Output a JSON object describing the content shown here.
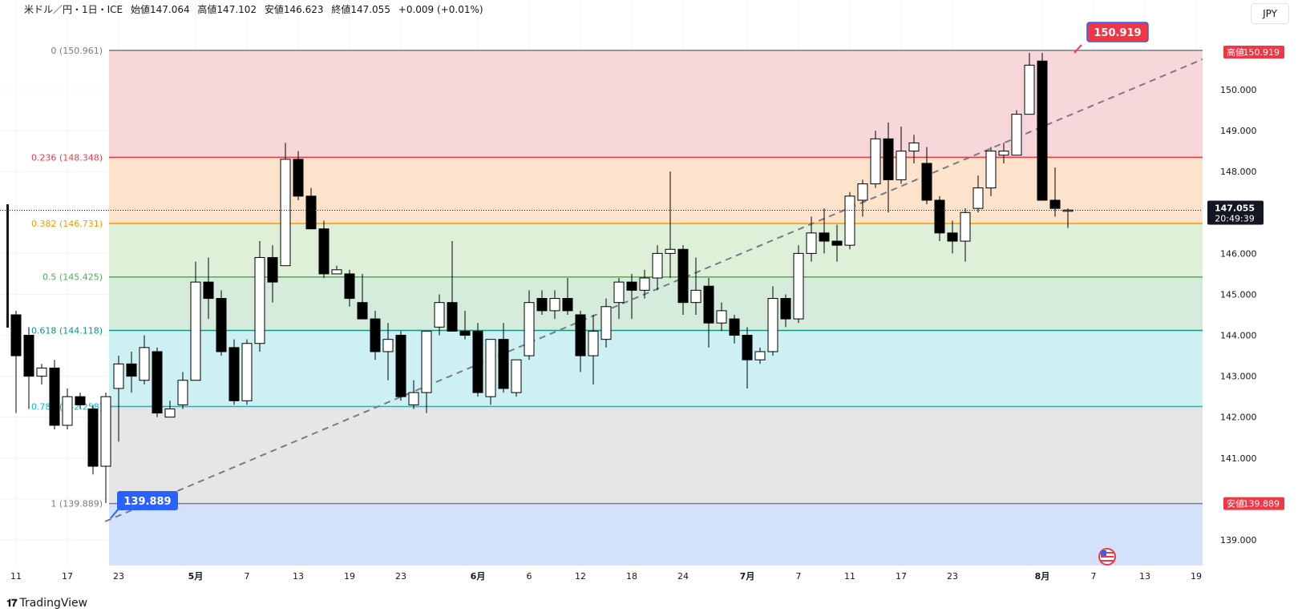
{
  "header": {
    "symbol": "米ドル／円・1日・ICE",
    "open": "始値147.064",
    "high": "高値147.102",
    "low": "安値146.623",
    "close": "終値147.055",
    "change": "+0.009 (+0.01%)"
  },
  "currency_button": "JPY",
  "branding": "TradingView",
  "colors": {
    "up_body": "#ffffff",
    "down_body": "#000000",
    "price_tag": "#f23645",
    "low_tag": "#2962ff"
  },
  "chart_data": {
    "type": "candlestick",
    "y_range": [
      138.8,
      151.2
    ],
    "price_scale_labels": [
      "150.000",
      "149.000",
      "148.000",
      "147.000",
      "146.000",
      "145.000",
      "144.000",
      "143.000",
      "142.000",
      "141.000",
      "139.000"
    ],
    "time_labels": [
      "11",
      "17",
      "23",
      "5月",
      "7",
      "13",
      "19",
      "23",
      "6月",
      "6",
      "12",
      "18",
      "24",
      "7月",
      "7",
      "11",
      "17",
      "23",
      "8月",
      "7",
      "13",
      "19"
    ],
    "current_price": "147.055",
    "countdown": "20:49:39",
    "high_label": "高値",
    "high_value": "150.919",
    "low_label": "安値",
    "low_value": "139.889",
    "swing_high_tag": "150.919",
    "swing_low_tag": "139.889",
    "fib_levels": [
      {
        "label": "0 (150.961)",
        "price": 150.961,
        "line": "#787b86",
        "fill": "#f8d7da"
      },
      {
        "label": "0.236 (148.348)",
        "price": 148.348,
        "line": "#f23645",
        "fill": "#fde3cc"
      },
      {
        "label": "0.382 (146.731)",
        "price": 146.731,
        "line": "#ff9800",
        "fill": "#dff0d8"
      },
      {
        "label": "0.5 (145.425)",
        "price": 145.425,
        "line": "#4caf50",
        "fill": "#d5ecdc"
      },
      {
        "label": "0.618 (144.118)",
        "price": 144.118,
        "line": "#089981",
        "fill": "#cdf0f2"
      },
      {
        "label": "0.786 (142.258)",
        "price": 142.258,
        "line": "#00bcd4",
        "fill": "#e6e6e6"
      },
      {
        "label": "1 (139.889)",
        "price": 139.889,
        "line": "#787b86",
        "fill": "#d4e1fb"
      }
    ],
    "candles": [
      {
        "x": 20,
        "o": 144.5,
        "h": 144.6,
        "l": 142.1,
        "c": 143.5
      },
      {
        "x": 36,
        "o": 144.0,
        "h": 144.2,
        "l": 142.2,
        "c": 143.0
      },
      {
        "x": 52,
        "o": 143.0,
        "h": 143.3,
        "l": 142.8,
        "c": 143.2
      },
      {
        "x": 68,
        "o": 143.2,
        "h": 143.4,
        "l": 141.7,
        "c": 141.8
      },
      {
        "x": 84,
        "o": 141.8,
        "h": 142.7,
        "l": 141.7,
        "c": 142.5
      },
      {
        "x": 100,
        "o": 142.5,
        "h": 142.6,
        "l": 142.2,
        "c": 142.3
      },
      {
        "x": 116,
        "o": 142.2,
        "h": 142.3,
        "l": 140.6,
        "c": 140.8
      },
      {
        "x": 132,
        "o": 140.8,
        "h": 142.6,
        "l": 139.9,
        "c": 142.5
      },
      {
        "x": 148,
        "o": 142.7,
        "h": 143.5,
        "l": 141.4,
        "c": 143.3
      },
      {
        "x": 164,
        "o": 143.3,
        "h": 143.6,
        "l": 142.6,
        "c": 143.0
      },
      {
        "x": 180,
        "o": 142.9,
        "h": 144.0,
        "l": 142.8,
        "c": 143.7
      },
      {
        "x": 196,
        "o": 143.6,
        "h": 143.7,
        "l": 142.0,
        "c": 142.1
      },
      {
        "x": 212,
        "o": 142.0,
        "h": 142.4,
        "l": 142.0,
        "c": 142.2
      },
      {
        "x": 228,
        "o": 142.3,
        "h": 143.1,
        "l": 142.2,
        "c": 142.9
      },
      {
        "x": 244,
        "o": 142.9,
        "h": 145.8,
        "l": 142.9,
        "c": 145.3
      },
      {
        "x": 260,
        "o": 145.3,
        "h": 145.9,
        "l": 144.4,
        "c": 144.9
      },
      {
        "x": 276,
        "o": 144.9,
        "h": 145.1,
        "l": 143.5,
        "c": 143.6
      },
      {
        "x": 292,
        "o": 143.7,
        "h": 143.9,
        "l": 142.3,
        "c": 142.4
      },
      {
        "x": 308,
        "o": 142.4,
        "h": 143.9,
        "l": 142.3,
        "c": 143.8
      },
      {
        "x": 324,
        "o": 143.8,
        "h": 146.3,
        "l": 143.6,
        "c": 145.9
      },
      {
        "x": 340,
        "o": 145.9,
        "h": 146.2,
        "l": 144.8,
        "c": 145.3
      },
      {
        "x": 356,
        "o": 145.7,
        "h": 148.7,
        "l": 145.7,
        "c": 148.3
      },
      {
        "x": 372,
        "o": 148.3,
        "h": 148.5,
        "l": 147.3,
        "c": 147.4
      },
      {
        "x": 388,
        "o": 147.4,
        "h": 147.6,
        "l": 146.6,
        "c": 146.6
      },
      {
        "x": 404,
        "o": 146.6,
        "h": 146.8,
        "l": 145.4,
        "c": 145.5
      },
      {
        "x": 420,
        "o": 145.5,
        "h": 145.7,
        "l": 145.5,
        "c": 145.6
      },
      {
        "x": 436,
        "o": 145.5,
        "h": 145.6,
        "l": 144.7,
        "c": 144.9
      },
      {
        "x": 452,
        "o": 144.8,
        "h": 145.5,
        "l": 144.4,
        "c": 144.4
      },
      {
        "x": 468,
        "o": 144.4,
        "h": 144.6,
        "l": 143.4,
        "c": 143.6
      },
      {
        "x": 484,
        "o": 143.6,
        "h": 144.3,
        "l": 142.9,
        "c": 143.9
      },
      {
        "x": 500,
        "o": 144.0,
        "h": 144.1,
        "l": 142.4,
        "c": 142.5
      },
      {
        "x": 516,
        "o": 142.3,
        "h": 142.9,
        "l": 142.2,
        "c": 142.6
      },
      {
        "x": 532,
        "o": 142.6,
        "h": 144.1,
        "l": 142.1,
        "c": 144.1
      },
      {
        "x": 548,
        "o": 144.2,
        "h": 145.0,
        "l": 144.0,
        "c": 144.8
      },
      {
        "x": 564,
        "o": 144.8,
        "h": 146.3,
        "l": 144.1,
        "c": 144.1
      },
      {
        "x": 580,
        "o": 144.1,
        "h": 144.6,
        "l": 143.9,
        "c": 144.0
      },
      {
        "x": 596,
        "o": 144.1,
        "h": 144.3,
        "l": 142.5,
        "c": 142.6
      },
      {
        "x": 612,
        "o": 142.5,
        "h": 143.9,
        "l": 142.3,
        "c": 143.9
      },
      {
        "x": 628,
        "o": 143.9,
        "h": 144.3,
        "l": 142.6,
        "c": 142.7
      },
      {
        "x": 644,
        "o": 142.6,
        "h": 143.4,
        "l": 142.5,
        "c": 143.4
      },
      {
        "x": 660,
        "o": 143.5,
        "h": 145.1,
        "l": 143.4,
        "c": 144.8
      },
      {
        "x": 676,
        "o": 144.9,
        "h": 145.1,
        "l": 144.5,
        "c": 144.6
      },
      {
        "x": 692,
        "o": 144.6,
        "h": 145.1,
        "l": 144.4,
        "c": 144.9
      },
      {
        "x": 708,
        "o": 144.9,
        "h": 145.4,
        "l": 144.5,
        "c": 144.6
      },
      {
        "x": 724,
        "o": 144.5,
        "h": 144.6,
        "l": 143.1,
        "c": 143.5
      },
      {
        "x": 740,
        "o": 143.5,
        "h": 144.5,
        "l": 142.8,
        "c": 144.1
      },
      {
        "x": 756,
        "o": 143.9,
        "h": 144.9,
        "l": 143.7,
        "c": 144.7
      },
      {
        "x": 772,
        "o": 144.8,
        "h": 145.4,
        "l": 144.4,
        "c": 145.3
      },
      {
        "x": 788,
        "o": 145.3,
        "h": 145.5,
        "l": 144.4,
        "c": 145.1
      },
      {
        "x": 804,
        "o": 145.1,
        "h": 145.6,
        "l": 144.9,
        "c": 145.4
      },
      {
        "x": 820,
        "o": 145.4,
        "h": 146.2,
        "l": 145.1,
        "c": 146.0
      },
      {
        "x": 836,
        "o": 146.0,
        "h": 148.0,
        "l": 145.4,
        "c": 146.1
      },
      {
        "x": 852,
        "o": 146.1,
        "h": 146.2,
        "l": 144.5,
        "c": 144.8
      },
      {
        "x": 868,
        "o": 144.8,
        "h": 145.9,
        "l": 144.5,
        "c": 145.1
      },
      {
        "x": 884,
        "o": 145.2,
        "h": 145.4,
        "l": 143.7,
        "c": 144.3
      },
      {
        "x": 900,
        "o": 144.3,
        "h": 144.8,
        "l": 144.1,
        "c": 144.6
      },
      {
        "x": 916,
        "o": 144.4,
        "h": 144.5,
        "l": 143.8,
        "c": 144.0
      },
      {
        "x": 932,
        "o": 144.0,
        "h": 144.2,
        "l": 142.7,
        "c": 143.4
      },
      {
        "x": 948,
        "o": 143.4,
        "h": 143.7,
        "l": 143.3,
        "c": 143.6
      },
      {
        "x": 964,
        "o": 143.6,
        "h": 145.2,
        "l": 143.5,
        "c": 144.9
      },
      {
        "x": 980,
        "o": 144.9,
        "h": 145.0,
        "l": 144.2,
        "c": 144.4
      },
      {
        "x": 996,
        "o": 144.4,
        "h": 146.2,
        "l": 144.3,
        "c": 146.0
      },
      {
        "x": 1012,
        "o": 146.0,
        "h": 146.9,
        "l": 145.8,
        "c": 146.5
      },
      {
        "x": 1028,
        "o": 146.5,
        "h": 147.1,
        "l": 146.0,
        "c": 146.3
      },
      {
        "x": 1044,
        "o": 146.3,
        "h": 146.7,
        "l": 145.8,
        "c": 146.2
      },
      {
        "x": 1060,
        "o": 146.2,
        "h": 147.5,
        "l": 146.1,
        "c": 147.4
      },
      {
        "x": 1076,
        "o": 147.3,
        "h": 147.8,
        "l": 146.9,
        "c": 147.7
      },
      {
        "x": 1092,
        "o": 147.7,
        "h": 149.0,
        "l": 147.6,
        "c": 148.8
      },
      {
        "x": 1108,
        "o": 148.8,
        "h": 149.2,
        "l": 147.0,
        "c": 147.8
      },
      {
        "x": 1124,
        "o": 147.8,
        "h": 149.1,
        "l": 147.7,
        "c": 148.5
      },
      {
        "x": 1140,
        "o": 148.5,
        "h": 148.9,
        "l": 148.2,
        "c": 148.7
      },
      {
        "x": 1156,
        "o": 148.2,
        "h": 148.6,
        "l": 147.2,
        "c": 147.3
      },
      {
        "x": 1172,
        "o": 147.3,
        "h": 147.4,
        "l": 146.3,
        "c": 146.5
      },
      {
        "x": 1188,
        "o": 146.5,
        "h": 146.8,
        "l": 146.0,
        "c": 146.3
      },
      {
        "x": 1204,
        "o": 146.3,
        "h": 147.1,
        "l": 145.8,
        "c": 147.0
      },
      {
        "x": 1220,
        "o": 147.1,
        "h": 147.9,
        "l": 147.0,
        "c": 147.6
      },
      {
        "x": 1236,
        "o": 147.6,
        "h": 148.6,
        "l": 147.4,
        "c": 148.5
      },
      {
        "x": 1252,
        "o": 148.4,
        "h": 148.7,
        "l": 148.2,
        "c": 148.5
      },
      {
        "x": 1268,
        "o": 148.4,
        "h": 149.5,
        "l": 148.4,
        "c": 149.4
      },
      {
        "x": 1284,
        "o": 149.4,
        "h": 150.9,
        "l": 149.4,
        "c": 150.6
      },
      {
        "x": 1300,
        "o": 150.7,
        "h": 150.9,
        "l": 147.3,
        "c": 147.3
      },
      {
        "x": 1316,
        "o": 147.3,
        "h": 148.1,
        "l": 146.9,
        "c": 147.1
      },
      {
        "x": 1332,
        "o": 147.06,
        "h": 147.1,
        "l": 146.62,
        "c": 147.06
      }
    ]
  }
}
